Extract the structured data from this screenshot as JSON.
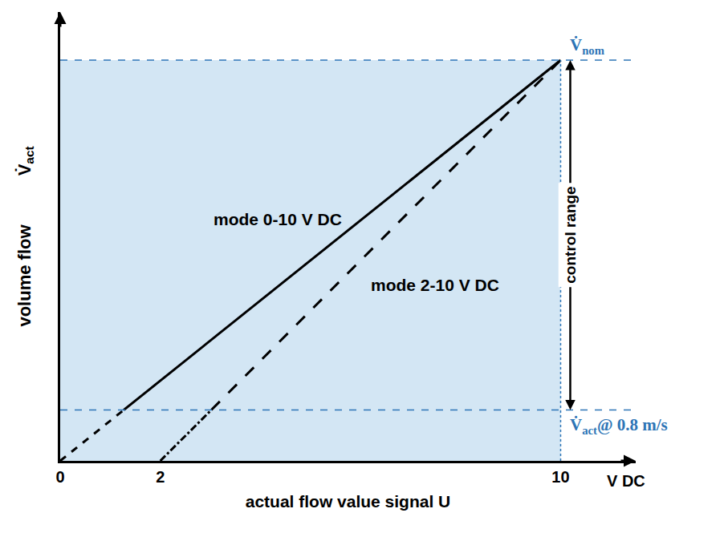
{
  "chart_data": {
    "type": "line",
    "x_label": "actual flow value signal U",
    "x_unit": "V DC",
    "y_label": "volume flow",
    "y_symbol": {
      "symbol": "V̇",
      "subscript": "act"
    },
    "xlim": [
      0,
      11.5
    ],
    "xticks": [
      0,
      2,
      10
    ],
    "ylim": [
      0,
      112
    ],
    "tick_labels": "x",
    "grid": false,
    "series": [
      {
        "name": "mode 0-10 V DC",
        "color": "#000000",
        "line_style": "solid",
        "x": [
          1.27,
          10
        ],
        "values": [
          12.7,
          100
        ]
      },
      {
        "color": "#000000",
        "line_style": "dash",
        "x": [
          0,
          1.27
        ],
        "values": [
          0,
          12.7
        ]
      },
      {
        "name": "mode 2-10 V DC",
        "color": "#000000",
        "line_style": "longdash",
        "x": [
          3.02,
          10
        ],
        "values": [
          12.7,
          100
        ]
      },
      {
        "color": "#000000",
        "line_style": "dashdot",
        "x": [
          2,
          3.02
        ],
        "values": [
          0,
          12.7
        ]
      }
    ],
    "reference_lines": [
      {
        "value": 100,
        "symbol": "V̇",
        "subscript": "nom",
        "color": "#2e75b6"
      },
      {
        "value": 12.7,
        "symbol": "V̇",
        "subscript": "act",
        "suffix": "@ 0.8 m/s",
        "color": "#2e75b6"
      }
    ],
    "shaded_area": {
      "color": "#d3e6f4",
      "x": [
        0,
        10
      ],
      "y": [
        0,
        100
      ]
    },
    "control_range": {
      "label": "control range",
      "from": 100,
      "to": 12.7
    }
  }
}
